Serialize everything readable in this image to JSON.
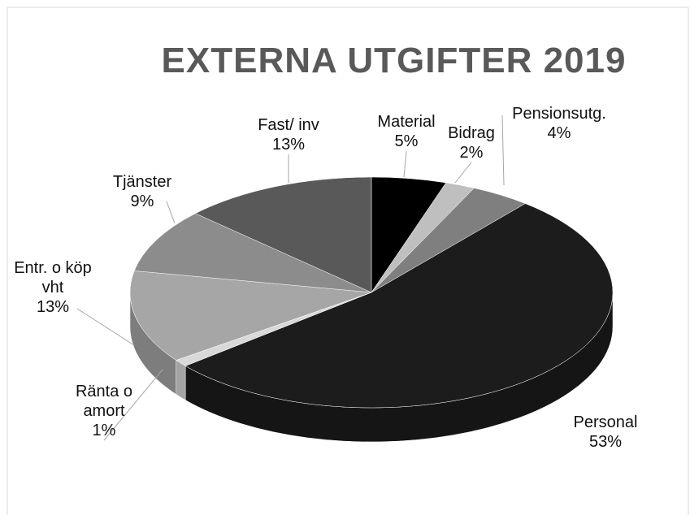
{
  "chart_data": {
    "type": "pie3d",
    "title": "EXTERNA UTGIFTER 2019",
    "categories": [
      "Material",
      "Bidrag",
      "Pensionsutg.",
      "Personal",
      "Ränta o amort",
      "Entr. o köp vht",
      "Tjänster",
      "Fast/ inv"
    ],
    "values": [
      5,
      2,
      4,
      53,
      1,
      13,
      9,
      13
    ],
    "value_labels": [
      "5%",
      "2%",
      "4%",
      "53%",
      "1%",
      "13%",
      "9%",
      "13%"
    ],
    "colors": [
      "#000000",
      "#bfbfbf",
      "#7f7f7f",
      "#1c1c1c",
      "#d9d9d9",
      "#a6a6a6",
      "#8c8c8c",
      "#595959"
    ]
  }
}
